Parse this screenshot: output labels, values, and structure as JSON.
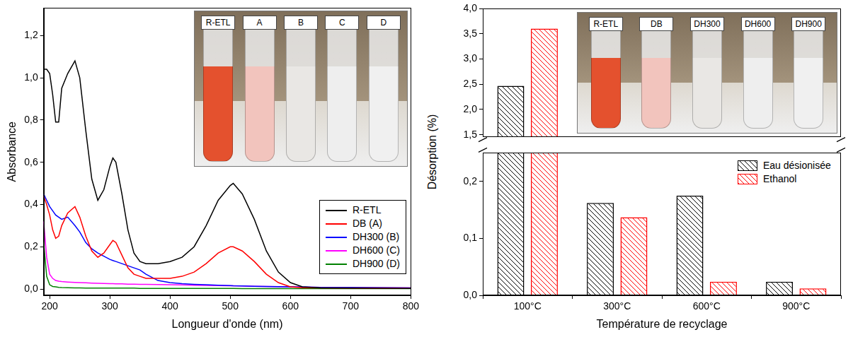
{
  "chart_data": [
    {
      "type": "line",
      "x_label": "Longueur d'onde (nm)",
      "y_label": "Absorbance",
      "x": [
        190,
        195,
        200,
        205,
        210,
        215,
        220,
        230,
        242,
        250,
        260,
        270,
        280,
        290,
        300,
        305,
        310,
        320,
        330,
        340,
        350,
        360,
        380,
        400,
        420,
        440,
        460,
        480,
        500,
        505,
        520,
        540,
        560,
        580,
        600,
        620,
        650,
        700,
        800
      ],
      "series": [
        {
          "name": "R-ETL",
          "color": "#000000",
          "values": [
            1.04,
            1.04,
            1.02,
            0.92,
            0.79,
            0.79,
            0.95,
            1.02,
            1.08,
            1.0,
            0.75,
            0.52,
            0.42,
            0.47,
            0.58,
            0.62,
            0.6,
            0.45,
            0.28,
            0.17,
            0.13,
            0.12,
            0.12,
            0.13,
            0.15,
            0.2,
            0.3,
            0.42,
            0.49,
            0.5,
            0.45,
            0.33,
            0.18,
            0.08,
            0.03,
            0.01,
            0.005,
            0.004,
            0.003
          ]
        },
        {
          "name": "DB (A)",
          "color": "#ff0000",
          "values": [
            0.44,
            0.4,
            0.35,
            0.28,
            0.24,
            0.25,
            0.3,
            0.36,
            0.39,
            0.34,
            0.25,
            0.18,
            0.15,
            0.17,
            0.21,
            0.23,
            0.22,
            0.16,
            0.1,
            0.07,
            0.06,
            0.05,
            0.05,
            0.05,
            0.06,
            0.08,
            0.12,
            0.17,
            0.2,
            0.2,
            0.18,
            0.13,
            0.07,
            0.03,
            0.01,
            0.006,
            0.005,
            0.004,
            0.003
          ]
        },
        {
          "name": "DH300 (B)",
          "color": "#0000ff",
          "values": [
            0.45,
            0.42,
            0.39,
            0.37,
            0.35,
            0.34,
            0.33,
            0.34,
            0.3,
            0.27,
            0.22,
            0.19,
            0.17,
            0.155,
            0.14,
            0.135,
            0.13,
            0.12,
            0.11,
            0.1,
            0.09,
            0.07,
            0.04,
            0.03,
            0.025,
            0.022,
            0.02,
            0.018,
            0.016,
            0.015,
            0.014,
            0.013,
            0.012,
            0.011,
            0.01,
            0.009,
            0.008,
            0.007,
            0.005
          ]
        },
        {
          "name": "DH600 (C)",
          "color": "#ff00ff",
          "values": [
            0.32,
            0.15,
            0.07,
            0.05,
            0.04,
            0.037,
            0.035,
            0.033,
            0.031,
            0.03,
            0.029,
            0.028,
            0.027,
            0.026,
            0.025,
            0.025,
            0.024,
            0.024,
            0.023,
            0.023,
            0.022,
            0.022,
            0.021,
            0.02,
            0.019,
            0.018,
            0.017,
            0.016,
            0.015,
            0.015,
            0.014,
            0.013,
            0.012,
            0.011,
            0.01,
            0.009,
            0.008,
            0.007,
            0.005
          ]
        },
        {
          "name": "DH900 (D)",
          "color": "#008000",
          "values": [
            0.22,
            0.06,
            0.02,
            0.012,
            0.01,
            0.008,
            0.007,
            0.006,
            0.005,
            0.005,
            0.004,
            0.004,
            0.004,
            0.004,
            0.004,
            0.004,
            0.004,
            0.004,
            0.004,
            0.004,
            0.003,
            0.003,
            0.003,
            0.003,
            0.003,
            0.003,
            0.003,
            0.003,
            0.003,
            0.003,
            0.002,
            0.002,
            0.002,
            0.002,
            0.002,
            0.002,
            0.002,
            0.002,
            0.002
          ]
        }
      ],
      "xlim": [
        190,
        800
      ],
      "xticks": [
        200,
        300,
        400,
        500,
        600,
        700,
        800
      ],
      "ylim": [
        -0.03,
        1.33
      ],
      "yticks": [
        {
          "value": 0,
          "label": "0,0"
        },
        {
          "value": 0.2,
          "label": "0,2"
        },
        {
          "value": 0.4,
          "label": "0,4"
        },
        {
          "value": 0.6,
          "label": "0,6"
        },
        {
          "value": 0.8,
          "label": "0,8"
        },
        {
          "value": 1,
          "label": "1,0"
        },
        {
          "value": 1.2,
          "label": "1,2"
        }
      ],
      "grid": false,
      "legend": "lower right",
      "inset": {
        "labels": [
          "R-ETL",
          "A",
          "B",
          "C",
          "D"
        ],
        "colors": [
          "#e4512e",
          "#f2c4bd",
          "#e9e7e4",
          "#eeeeee",
          "#f0f0f0"
        ]
      }
    },
    {
      "type": "bar",
      "x_label": "Température de recyclage",
      "y_label": "Désorption (%)",
      "categories": [
        "100°C",
        "300°C",
        "600°C",
        "900°C"
      ],
      "series": [
        {
          "name": "Eau désionisée",
          "color": "#000000",
          "values": [
            2.47,
            0.162,
            0.175,
            0.024
          ]
        },
        {
          "name": "Ethanol",
          "color": "#ff0000",
          "values": [
            3.6,
            0.137,
            0.024,
            0.012
          ]
        }
      ],
      "ylim": [
        0,
        4.0
      ],
      "ybreak": [
        0.25,
        1.46
      ],
      "yticks": [
        {
          "value": 0,
          "label": "0,0"
        },
        {
          "value": 0.1,
          "label": "0,1"
        },
        {
          "value": 0.2,
          "label": "0,2"
        },
        {
          "value": 1.5,
          "label": "1,5"
        },
        {
          "value": 2,
          "label": "2,0"
        },
        {
          "value": 2.5,
          "label": "2,5"
        },
        {
          "value": 3,
          "label": "3,0"
        },
        {
          "value": 3.5,
          "label": "3,5"
        },
        {
          "value": 4,
          "label": "4,0"
        }
      ],
      "grid": false,
      "legend": "right",
      "inset": {
        "labels": [
          "R-ETL",
          "DB",
          "DH300",
          "DH600",
          "DH900"
        ],
        "colors": [
          "#e4512e",
          "#f2c4bd",
          "#e9e7e4",
          "#eeeeee",
          "#f0f0f0"
        ]
      }
    }
  ]
}
